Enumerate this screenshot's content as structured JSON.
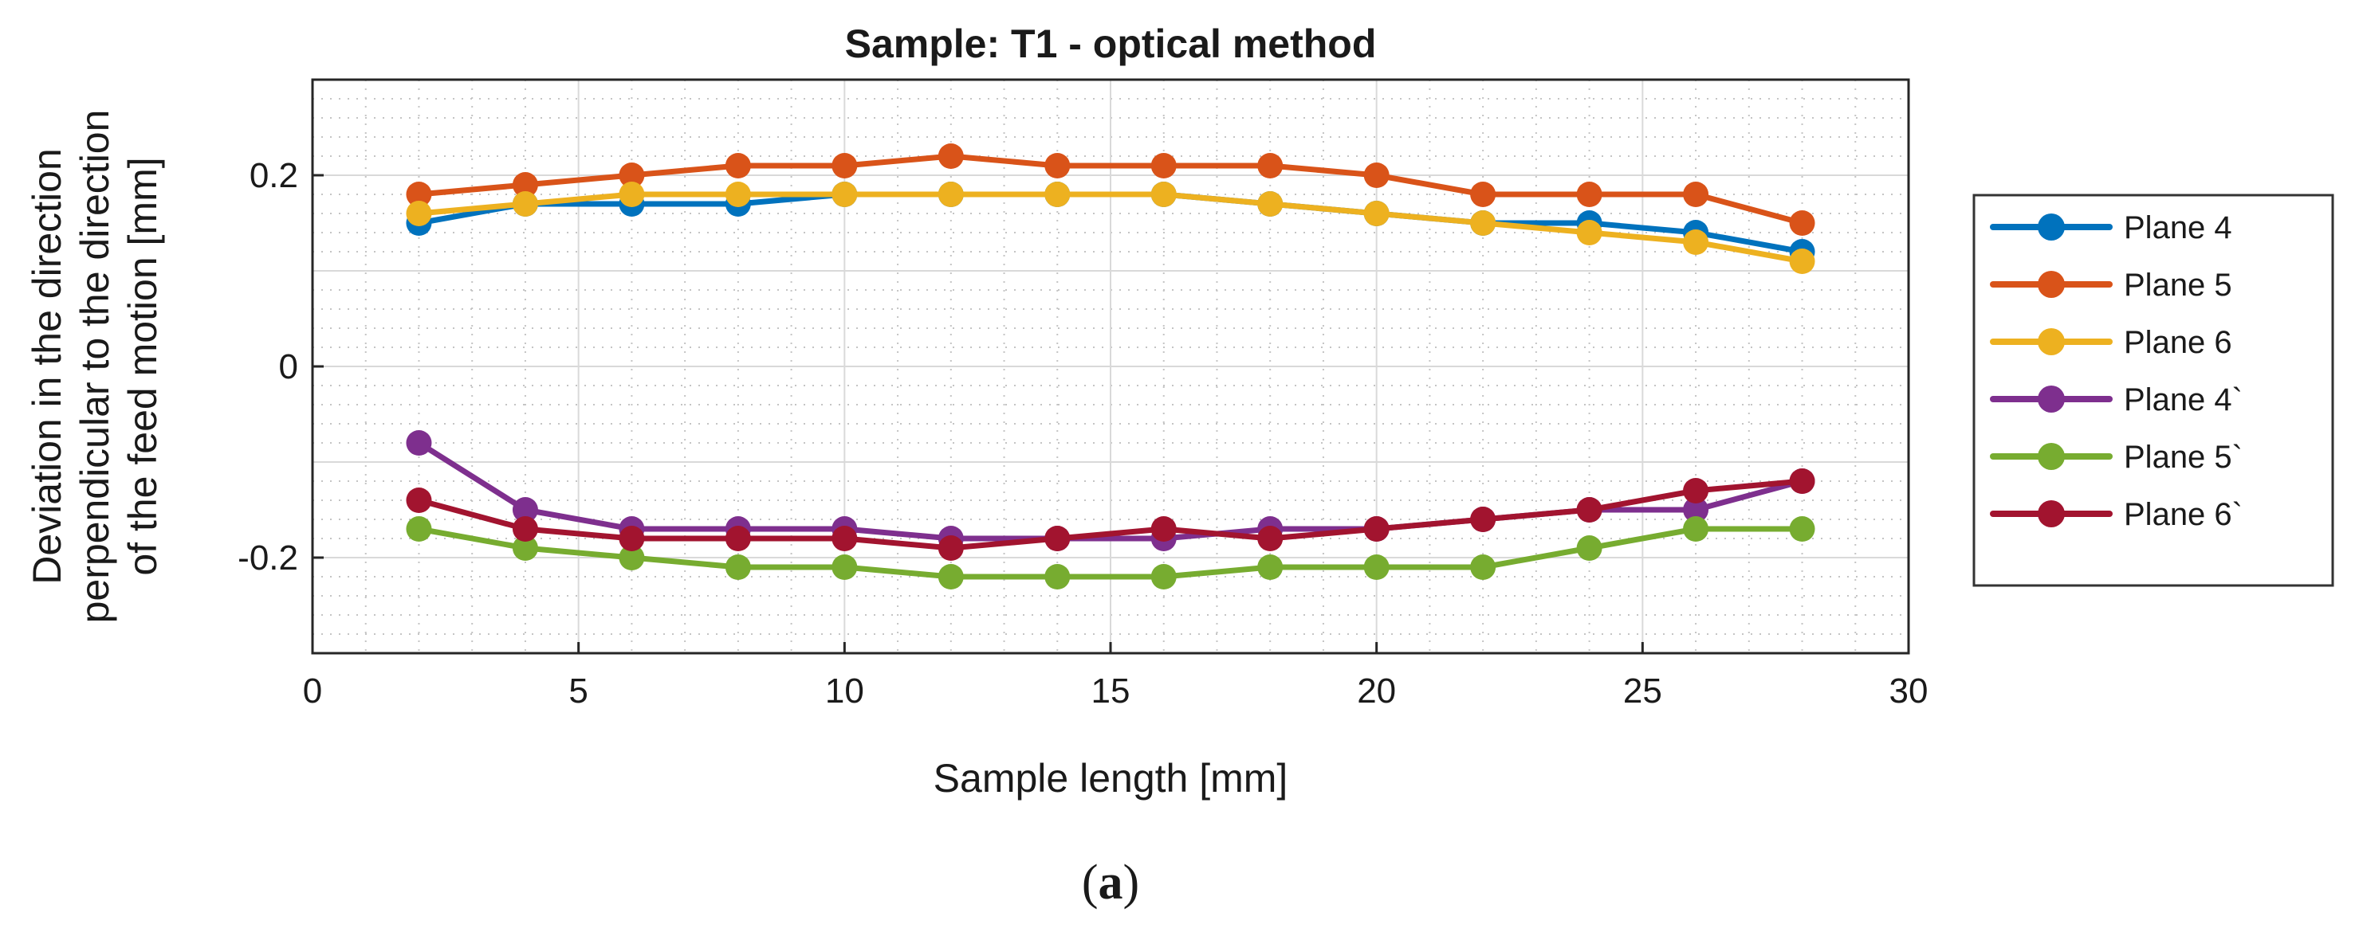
{
  "chart_data": {
    "type": "line",
    "title": "Sample: T1 - optical method",
    "xlabel": "Sample length [mm]",
    "ylabel_lines": [
      "Deviation in the direction",
      "perpendicular to the direction",
      "of the feed motion [mm]"
    ],
    "xlim": [
      0,
      30
    ],
    "ylim": [
      -0.3,
      0.3
    ],
    "xticks": [
      0,
      5,
      10,
      15,
      20,
      25,
      30
    ],
    "yticks": [
      -0.2,
      0,
      0.2
    ],
    "ytick_labels": [
      "-0.2",
      "0",
      "0.2"
    ],
    "grid": true,
    "legend_position": "right",
    "x": [
      2,
      4,
      6,
      8,
      10,
      12,
      14,
      16,
      18,
      20,
      22,
      24,
      26,
      28
    ],
    "series": [
      {
        "name": "Plane 4",
        "color": "#0072bd",
        "values": [
          0.15,
          0.17,
          0.17,
          0.17,
          0.18,
          0.18,
          0.18,
          0.18,
          0.17,
          0.16,
          0.15,
          0.15,
          0.14,
          0.12
        ]
      },
      {
        "name": "Plane 5",
        "color": "#d95319",
        "values": [
          0.18,
          0.19,
          0.2,
          0.21,
          0.21,
          0.22,
          0.21,
          0.21,
          0.21,
          0.2,
          0.18,
          0.18,
          0.18,
          0.15
        ]
      },
      {
        "name": "Plane 6",
        "color": "#edb120",
        "values": [
          0.16,
          0.17,
          0.18,
          0.18,
          0.18,
          0.18,
          0.18,
          0.18,
          0.17,
          0.16,
          0.15,
          0.14,
          0.13,
          0.11
        ]
      },
      {
        "name": "Plane 4`",
        "color": "#7e2f8e",
        "values": [
          -0.08,
          -0.15,
          -0.17,
          -0.17,
          -0.17,
          -0.18,
          -0.18,
          -0.18,
          -0.17,
          -0.17,
          -0.16,
          -0.15,
          -0.15,
          -0.12
        ]
      },
      {
        "name": "Plane 5`",
        "color": "#77ac30",
        "values": [
          -0.17,
          -0.19,
          -0.2,
          -0.21,
          -0.21,
          -0.22,
          -0.22,
          -0.22,
          -0.21,
          -0.21,
          -0.21,
          -0.19,
          -0.17,
          -0.17
        ]
      },
      {
        "name": "Plane 6`",
        "color": "#a2142f",
        "values": [
          -0.14,
          -0.17,
          -0.18,
          -0.18,
          -0.18,
          -0.19,
          -0.18,
          -0.17,
          -0.18,
          -0.17,
          -0.16,
          -0.15,
          -0.13,
          -0.12
        ]
      }
    ]
  },
  "caption": {
    "open": "(",
    "letter": "a",
    "close": ")"
  }
}
